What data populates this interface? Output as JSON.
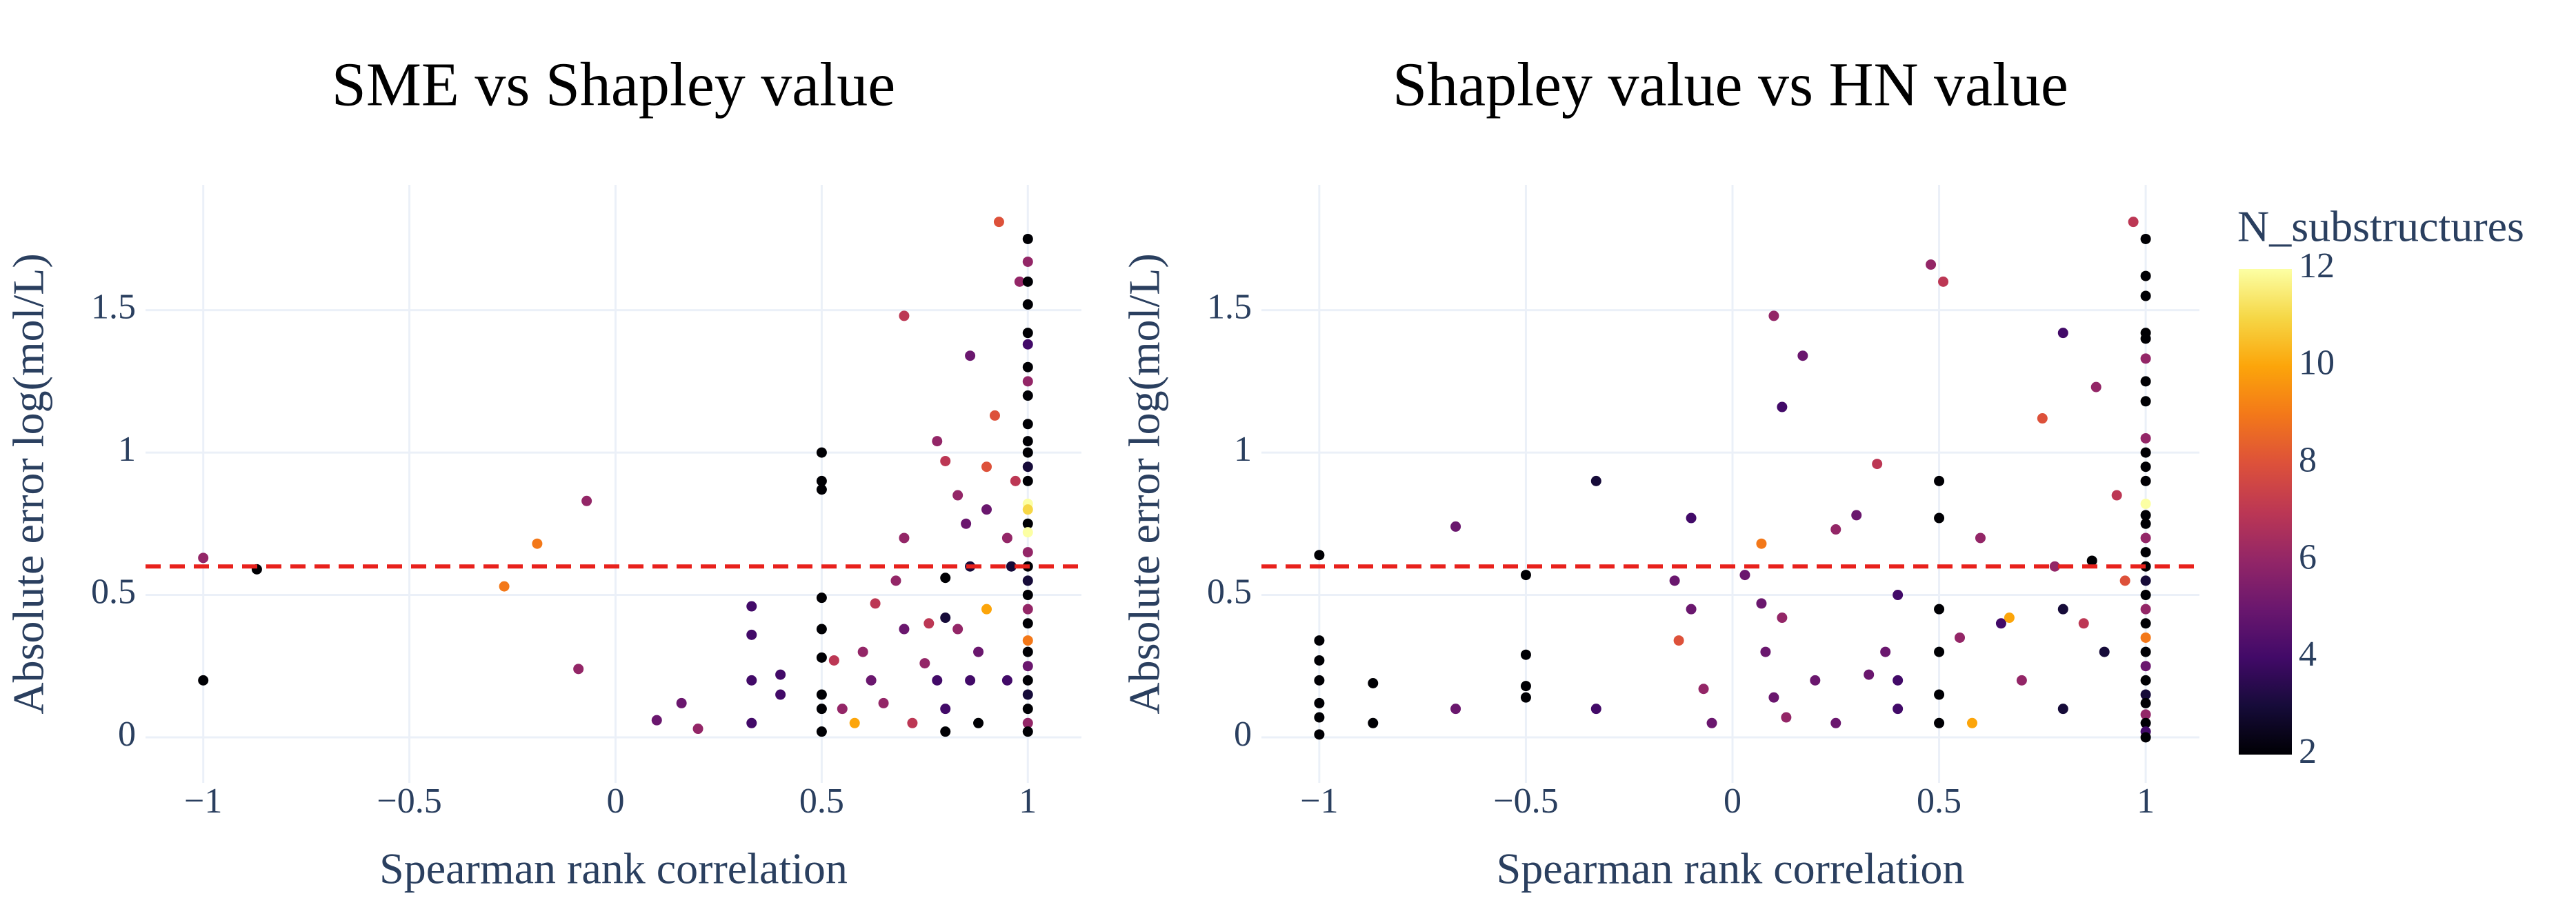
{
  "chart_data": [
    {
      "type": "scatter",
      "title": "SME vs Shapley value",
      "x_label": "Spearman rank correlation",
      "y_label": "Absolute error log(mol/L)",
      "x": [
        -1,
        -1,
        -0.87,
        -0.27,
        -0.19,
        -0.07,
        -0.09,
        0.1,
        0.16,
        0.2,
        0.33,
        0.33,
        0.33,
        0.33,
        0.4,
        0.4,
        0.5,
        0.5,
        0.5,
        0.5,
        0.5,
        0.5,
        0.5,
        0.5,
        0.5,
        0.53,
        0.55,
        0.58,
        0.6,
        0.62,
        0.63,
        0.65,
        0.68,
        0.7,
        0.7,
        0.7,
        0.72,
        0.75,
        0.76,
        0.78,
        0.78,
        0.8,
        0.8,
        0.8,
        0.8,
        0.8,
        0.83,
        0.83,
        0.86,
        0.86,
        0.86,
        0.88,
        0.88,
        0.9,
        0.9,
        0.92,
        0.93,
        0.95,
        0.95,
        0.96,
        0.98,
        0.97,
        0.9,
        0.85,
        1,
        1,
        1,
        1,
        1,
        1,
        1,
        1,
        1,
        1,
        1,
        1,
        1,
        1,
        1,
        1,
        1,
        1,
        1,
        1,
        1,
        1,
        1,
        1,
        1,
        1,
        1,
        1,
        1,
        1,
        1,
        1
      ],
      "y": [
        0.2,
        0.63,
        0.59,
        0.53,
        0.68,
        0.83,
        0.24,
        0.06,
        0.12,
        0.03,
        0.46,
        0.36,
        0.2,
        0.05,
        0.22,
        0.15,
        1.0,
        0.9,
        0.87,
        0.49,
        0.38,
        0.28,
        0.15,
        0.1,
        0.02,
        0.27,
        0.1,
        0.05,
        0.3,
        0.2,
        0.47,
        0.12,
        0.55,
        1.48,
        0.7,
        0.38,
        0.05,
        0.26,
        0.4,
        1.04,
        0.2,
        0.97,
        0.56,
        0.42,
        0.1,
        0.02,
        0.38,
        0.85,
        0.6,
        1.34,
        0.2,
        0.05,
        0.3,
        0.95,
        0.45,
        1.13,
        1.81,
        0.7,
        0.2,
        0.6,
        1.6,
        0.9,
        0.8,
        0.75,
        1.75,
        1.67,
        1.6,
        1.52,
        1.42,
        1.38,
        1.3,
        1.25,
        1.2,
        1.1,
        1.04,
        1.0,
        0.95,
        0.9,
        0.82,
        0.8,
        0.75,
        0.72,
        0.65,
        0.6,
        0.55,
        0.5,
        0.45,
        0.4,
        0.34,
        0.3,
        0.25,
        0.2,
        0.15,
        0.1,
        0.05,
        0.02
      ],
      "color_values": [
        2,
        6,
        2,
        9,
        9,
        6,
        6,
        5,
        5,
        6,
        4,
        4,
        4,
        4,
        4,
        4,
        2,
        2,
        2,
        2,
        2,
        2,
        2,
        2,
        2,
        7,
        6,
        10,
        6,
        5,
        7,
        6,
        6,
        7,
        6,
        5,
        7,
        6,
        7,
        6,
        4,
        7,
        2,
        3,
        4,
        2,
        6,
        6,
        3,
        5,
        4,
        2,
        5,
        8,
        10,
        8,
        8,
        6,
        4,
        3,
        6,
        7,
        5,
        5,
        2,
        6,
        2,
        2,
        2,
        4,
        2,
        6,
        2,
        2,
        2,
        2,
        3,
        2,
        12,
        11,
        2,
        12,
        6,
        2,
        3,
        2,
        6,
        2,
        9,
        2,
        5,
        2,
        3,
        2,
        6,
        2
      ],
      "xlim": [
        -1.14,
        1.13
      ],
      "ylim": [
        -0.16,
        1.94
      ],
      "xticks": [
        {
          "value": -1,
          "label": "−1"
        },
        {
          "value": -0.5,
          "label": "−0.5"
        },
        0,
        0.5,
        1
      ],
      "yticks": [
        0,
        0.5,
        1,
        1.5
      ],
      "grid": true,
      "hline": {
        "y": 0.6,
        "color": "#e8211c"
      }
    },
    {
      "type": "scatter",
      "title": "Shapley value vs HN value",
      "x_label": "Spearman rank correlation",
      "y_label": "Absolute error log(mol/L)",
      "x": [
        -1,
        -1,
        -1,
        -1,
        -1,
        -1,
        -1,
        -0.87,
        -0.87,
        -0.67,
        -0.67,
        -0.5,
        -0.5,
        -0.5,
        -0.5,
        -0.33,
        -0.33,
        -0.14,
        -0.13,
        -0.1,
        -0.1,
        -0.07,
        -0.05,
        0.03,
        0.07,
        0.07,
        0.08,
        0.1,
        0.1,
        0.12,
        0.12,
        0.13,
        0.17,
        0.2,
        0.25,
        0.25,
        0.3,
        0.33,
        0.35,
        0.37,
        0.4,
        0.4,
        0.4,
        0.48,
        0.5,
        0.5,
        0.5,
        0.5,
        0.5,
        0.5,
        0.51,
        0.55,
        0.58,
        0.6,
        0.65,
        0.67,
        0.7,
        0.75,
        0.78,
        0.8,
        0.8,
        0.8,
        0.85,
        0.87,
        0.88,
        0.9,
        0.93,
        0.95,
        0.97,
        1,
        1,
        1,
        1,
        1,
        1,
        1,
        1,
        1,
        1,
        1,
        1,
        1,
        1,
        1,
        1,
        1,
        1,
        1,
        1,
        1,
        1,
        1,
        1,
        1,
        1,
        1,
        1,
        1,
        1,
        1,
        1
      ],
      "y": [
        0.64,
        0.34,
        0.27,
        0.2,
        0.12,
        0.07,
        0.01,
        0.19,
        0.05,
        0.74,
        0.1,
        0.57,
        0.29,
        0.18,
        0.14,
        0.9,
        0.1,
        0.55,
        0.34,
        0.77,
        0.45,
        0.17,
        0.05,
        0.57,
        0.68,
        0.47,
        0.3,
        1.48,
        0.14,
        1.16,
        0.42,
        0.07,
        1.34,
        0.2,
        0.73,
        0.05,
        0.78,
        0.22,
        0.96,
        0.3,
        0.5,
        0.2,
        0.1,
        1.66,
        0.9,
        0.77,
        0.45,
        0.3,
        0.15,
        0.05,
        1.6,
        0.35,
        0.05,
        0.7,
        0.4,
        0.42,
        0.2,
        1.12,
        0.6,
        1.42,
        0.45,
        0.1,
        0.4,
        0.62,
        1.23,
        0.3,
        0.85,
        0.55,
        1.81,
        1.75,
        1.62,
        1.55,
        1.42,
        1.4,
        1.33,
        1.25,
        1.18,
        1.05,
        1.0,
        0.95,
        0.9,
        0.82,
        0.78,
        0.75,
        0.7,
        0.65,
        0.6,
        0.55,
        0.5,
        0.45,
        0.4,
        0.35,
        0.3,
        0.25,
        0.2,
        0.15,
        0.12,
        0.08,
        0.05,
        0.02,
        0.0
      ],
      "color_values": [
        2,
        2,
        2,
        2,
        2,
        2,
        2,
        2,
        2,
        5,
        5,
        2,
        2,
        2,
        2,
        3,
        4,
        5,
        8,
        4,
        5,
        6,
        5,
        5,
        9,
        5,
        5,
        6,
        5,
        4,
        6,
        6,
        5,
        5,
        6,
        5,
        5,
        5,
        7,
        5,
        4,
        4,
        4,
        6,
        2,
        2,
        2,
        2,
        2,
        2,
        7,
        6,
        10,
        6,
        4,
        10,
        6,
        8,
        6,
        4,
        3,
        3,
        7,
        2,
        6,
        3,
        7,
        8,
        7,
        2,
        2,
        2,
        2,
        2,
        6,
        2,
        2,
        6,
        2,
        2,
        2,
        12,
        2,
        2,
        6,
        2,
        2,
        3,
        2,
        6,
        2,
        9,
        2,
        5,
        2,
        3,
        2,
        6,
        2,
        4,
        2
      ],
      "xlim": [
        -1.14,
        1.13
      ],
      "ylim": [
        -0.16,
        1.94
      ],
      "xticks": [
        {
          "value": -1,
          "label": "−1"
        },
        {
          "value": -0.5,
          "label": "−0.5"
        },
        0,
        0.5,
        1
      ],
      "yticks": [
        0,
        0.5,
        1,
        1.5
      ],
      "grid": true,
      "hline": {
        "y": 0.6,
        "color": "#e8211c"
      },
      "colorbar": {
        "title": "N_substructures",
        "lim": [
          2,
          12
        ],
        "ticks": [
          2,
          4,
          6,
          8,
          10,
          12
        ],
        "colorscale": "inferno"
      }
    }
  ]
}
